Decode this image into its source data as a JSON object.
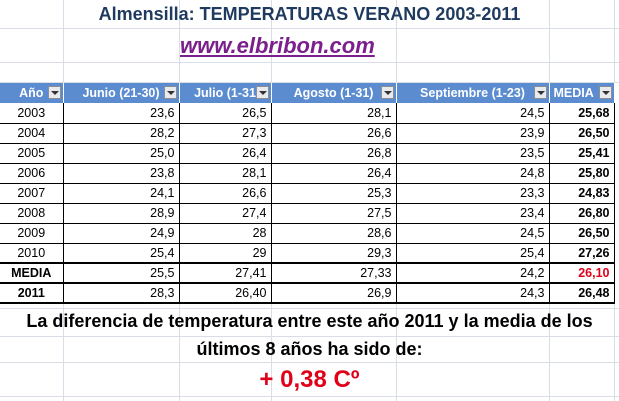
{
  "title": "Almensilla: TEMPERATURAS VERANO 2003-2011",
  "site": "www.elbribon.com",
  "headers": [
    "Año",
    "Junio (21-30)",
    "Julio (1-31",
    "Agosto (1-31)",
    "Septiembre (1-23)",
    "MEDIA"
  ],
  "rows": [
    [
      "2003",
      "23,6",
      "26,5",
      "28,1",
      "24,5",
      "25,68"
    ],
    [
      "2004",
      "28,2",
      "27,3",
      "26,6",
      "23,9",
      "26,50"
    ],
    [
      "2005",
      "25,0",
      "26,4",
      "26,8",
      "23,5",
      "25,41"
    ],
    [
      "2006",
      "23,8",
      "28,1",
      "26,4",
      "24,8",
      "25,80"
    ],
    [
      "2007",
      "24,1",
      "26,6",
      "25,3",
      "23,3",
      "24,83"
    ],
    [
      "2008",
      "28,9",
      "27,4",
      "27,5",
      "23,4",
      "26,80"
    ],
    [
      "2009",
      "24,9",
      "28",
      "28,6",
      "24,5",
      "26,50"
    ],
    [
      "2010",
      "25,4",
      "29",
      "29,3",
      "25,4",
      "27,26"
    ]
  ],
  "media_row": [
    "MEDIA",
    "25,5",
    "27,41",
    "27,33",
    "24,2",
    "26,10"
  ],
  "row_2011": [
    "2011",
    "28,3",
    "26,40",
    "26,9",
    "24,3",
    "26,48"
  ],
  "message_line1": "La diferencia de temperatura entre este año 2011 y la media de los",
  "message_line2": "últimos 8 años ha sido de:",
  "difference": "+ 0,38 Cº",
  "colors": {
    "header_bg": "#5b8ccf",
    "highlight_red": "#e0001a",
    "title": "#1f3a5f",
    "link": "#7a1f8c"
  }
}
